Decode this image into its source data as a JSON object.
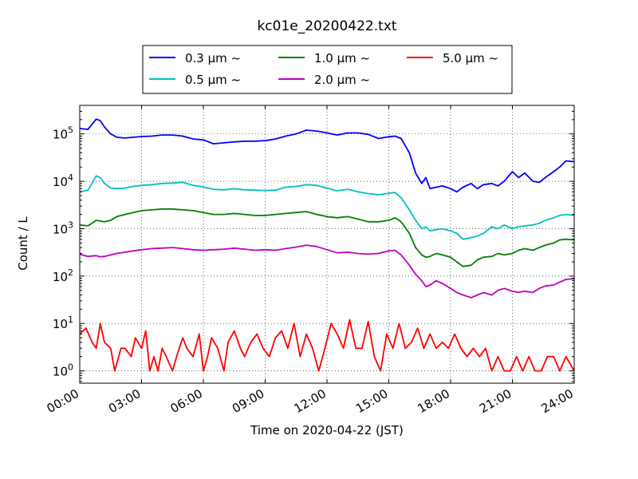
{
  "chart_data": {
    "type": "line",
    "title": "kc01e_20200422.txt",
    "xlabel": "Time on 2020-04-22 (JST)",
    "ylabel": "Count / L",
    "x_unit": "hour",
    "xlim": [
      0,
      24
    ],
    "ylim": [
      0.55,
      400000
    ],
    "yscale": "log",
    "grid": true,
    "legend_position": "top-center",
    "x_ticks": [
      {
        "value": 0,
        "label": "00:00"
      },
      {
        "value": 3,
        "label": "03:00"
      },
      {
        "value": 6,
        "label": "06:00"
      },
      {
        "value": 9,
        "label": "09:00"
      },
      {
        "value": 12,
        "label": "12:00"
      },
      {
        "value": 15,
        "label": "15:00"
      },
      {
        "value": 18,
        "label": "18:00"
      },
      {
        "value": 21,
        "label": "21:00"
      },
      {
        "value": 24,
        "label": "24:00"
      }
    ],
    "y_ticks": [
      {
        "value": 1,
        "base": "10",
        "exp": "0"
      },
      {
        "value": 10,
        "base": "10",
        "exp": "1"
      },
      {
        "value": 100,
        "base": "10",
        "exp": "2"
      },
      {
        "value": 1000,
        "base": "10",
        "exp": "3"
      },
      {
        "value": 10000,
        "base": "10",
        "exp": "4"
      },
      {
        "value": 100000,
        "base": "10",
        "exp": "5"
      }
    ],
    "series": [
      {
        "name": "0.3 μm  ~",
        "color": "#0000ff",
        "x": [
          0,
          0.4,
          0.8,
          1.0,
          1.2,
          1.5,
          1.8,
          2.2,
          2.6,
          3.0,
          3.5,
          4.0,
          4.5,
          5.0,
          5.5,
          6.0,
          6.5,
          7.0,
          7.5,
          8.0,
          8.5,
          9.0,
          9.5,
          10.0,
          10.5,
          11.0,
          11.5,
          12.0,
          12.5,
          13.0,
          13.5,
          14.0,
          14.5,
          15.0,
          15.3,
          15.6,
          16.0,
          16.3,
          16.6,
          16.8,
          17.0,
          17.3,
          17.6,
          18.0,
          18.3,
          18.6,
          19.0,
          19.3,
          19.6,
          20.0,
          20.3,
          20.6,
          21.0,
          21.3,
          21.6,
          22.0,
          22.3,
          22.6,
          23.0,
          23.3,
          23.6,
          24.0
        ],
        "y": [
          130000,
          125000,
          205000,
          190000,
          140000,
          100000,
          85000,
          82000,
          85000,
          88000,
          90000,
          95000,
          95000,
          90000,
          78000,
          75000,
          62000,
          65000,
          68000,
          70000,
          70000,
          72000,
          78000,
          90000,
          100000,
          120000,
          115000,
          105000,
          95000,
          105000,
          105000,
          98000,
          80000,
          87000,
          90000,
          80000,
          40000,
          15000,
          9000,
          12000,
          7000,
          7500,
          8000,
          7000,
          6000,
          7500,
          9000,
          7000,
          8500,
          9000,
          8000,
          10000,
          16000,
          12000,
          15000,
          10000,
          9500,
          12000,
          16000,
          20000,
          27000,
          26000
        ]
      },
      {
        "name": "0.5 μm  ~",
        "color": "#00bfbf",
        "x": [
          0,
          0.4,
          0.8,
          1.0,
          1.2,
          1.5,
          1.8,
          2.2,
          2.6,
          3.0,
          3.5,
          4.0,
          4.5,
          5.0,
          5.5,
          6.0,
          6.5,
          7.0,
          7.5,
          8.0,
          8.5,
          9.0,
          9.5,
          10.0,
          10.5,
          11.0,
          11.5,
          12.0,
          12.5,
          13.0,
          13.5,
          14.0,
          14.5,
          15.0,
          15.3,
          15.6,
          16.0,
          16.3,
          16.6,
          16.8,
          17.0,
          17.3,
          17.6,
          18.0,
          18.3,
          18.6,
          19.0,
          19.3,
          19.6,
          20.0,
          20.3,
          20.6,
          21.0,
          21.3,
          21.6,
          22.0,
          22.3,
          22.6,
          23.0,
          23.3,
          23.6,
          24.0
        ],
        "y": [
          6000,
          6500,
          13000,
          12000,
          9000,
          7200,
          7000,
          7200,
          7800,
          8200,
          8500,
          9000,
          9200,
          9500,
          8200,
          7600,
          6800,
          6600,
          7000,
          6600,
          6500,
          6400,
          6500,
          7500,
          7800,
          8500,
          8200,
          7200,
          6300,
          6800,
          6000,
          5500,
          5200,
          5600,
          5800,
          4500,
          2500,
          1500,
          1000,
          1100,
          900,
          950,
          1000,
          900,
          800,
          600,
          650,
          700,
          800,
          1100,
          1000,
          1200,
          1000,
          1100,
          1150,
          1200,
          1300,
          1500,
          1700,
          1900,
          2000,
          1900
        ]
      },
      {
        "name": "1.0 μm  ~",
        "color": "#008000",
        "x": [
          0,
          0.4,
          0.8,
          1.0,
          1.2,
          1.5,
          1.8,
          2.2,
          2.6,
          3.0,
          3.5,
          4.0,
          4.5,
          5.0,
          5.5,
          6.0,
          6.5,
          7.0,
          7.5,
          8.0,
          8.5,
          9.0,
          9.5,
          10.0,
          10.5,
          11.0,
          11.5,
          12.0,
          12.5,
          13.0,
          13.5,
          14.0,
          14.5,
          15.0,
          15.3,
          15.6,
          16.0,
          16.3,
          16.6,
          16.8,
          17.0,
          17.3,
          17.6,
          18.0,
          18.3,
          18.6,
          19.0,
          19.3,
          19.6,
          20.0,
          20.3,
          20.6,
          21.0,
          21.3,
          21.6,
          22.0,
          22.3,
          22.6,
          23.0,
          23.3,
          23.6,
          24.0
        ],
        "y": [
          1200,
          1150,
          1500,
          1450,
          1400,
          1500,
          1800,
          2000,
          2200,
          2400,
          2500,
          2600,
          2600,
          2500,
          2400,
          2200,
          2000,
          2000,
          2100,
          2000,
          1900,
          1900,
          2000,
          2100,
          2200,
          2300,
          2000,
          1800,
          1700,
          1800,
          1600,
          1400,
          1400,
          1500,
          1700,
          1400,
          800,
          400,
          280,
          250,
          260,
          300,
          280,
          250,
          200,
          160,
          170,
          220,
          250,
          260,
          300,
          280,
          300,
          350,
          380,
          350,
          400,
          450,
          500,
          580,
          600,
          580
        ]
      },
      {
        "name": "2.0 μm  ~",
        "color": "#bf00bf",
        "x": [
          0,
          0.4,
          0.8,
          1.0,
          1.2,
          1.5,
          1.8,
          2.2,
          2.6,
          3.0,
          3.5,
          4.0,
          4.5,
          5.0,
          5.5,
          6.0,
          6.5,
          7.0,
          7.5,
          8.0,
          8.5,
          9.0,
          9.5,
          10.0,
          10.5,
          11.0,
          11.5,
          12.0,
          12.5,
          13.0,
          13.5,
          14.0,
          14.5,
          15.0,
          15.3,
          15.6,
          16.0,
          16.3,
          16.6,
          16.8,
          17.0,
          17.3,
          17.6,
          18.0,
          18.3,
          18.6,
          19.0,
          19.3,
          19.6,
          20.0,
          20.3,
          20.6,
          21.0,
          21.3,
          21.6,
          22.0,
          22.3,
          22.6,
          23.0,
          23.3,
          23.6,
          24.0
        ],
        "y": [
          290,
          260,
          270,
          255,
          260,
          280,
          300,
          320,
          340,
          360,
          380,
          390,
          400,
          380,
          360,
          350,
          360,
          370,
          390,
          370,
          350,
          360,
          350,
          380,
          410,
          450,
          420,
          360,
          310,
          320,
          300,
          290,
          300,
          340,
          350,
          280,
          170,
          110,
          80,
          60,
          65,
          80,
          70,
          55,
          45,
          40,
          35,
          40,
          45,
          40,
          50,
          55,
          48,
          45,
          48,
          45,
          55,
          62,
          65,
          75,
          85,
          88
        ]
      },
      {
        "name": "5.0 μm  ~",
        "color": "#ff0000",
        "x": [
          0,
          0.3,
          0.6,
          0.8,
          1.0,
          1.2,
          1.5,
          1.7,
          2.0,
          2.2,
          2.5,
          2.7,
          3.0,
          3.2,
          3.4,
          3.6,
          3.8,
          4.0,
          4.2,
          4.5,
          4.7,
          5.0,
          5.2,
          5.5,
          5.8,
          6.0,
          6.2,
          6.4,
          6.7,
          7.0,
          7.2,
          7.5,
          7.8,
          8.0,
          8.3,
          8.6,
          8.9,
          9.2,
          9.5,
          9.8,
          10.1,
          10.4,
          10.7,
          11.0,
          11.3,
          11.6,
          11.9,
          12.2,
          12.5,
          12.8,
          13.1,
          13.4,
          13.7,
          14.0,
          14.3,
          14.6,
          14.9,
          15.2,
          15.5,
          15.8,
          16.1,
          16.4,
          16.7,
          17.0,
          17.3,
          17.6,
          17.9,
          18.2,
          18.5,
          18.8,
          19.1,
          19.4,
          19.7,
          20.0,
          20.3,
          20.6,
          20.9,
          21.2,
          21.5,
          21.8,
          22.1,
          22.4,
          22.7,
          23.0,
          23.3,
          23.6,
          24.0
        ],
        "y": [
          6,
          8,
          4,
          3,
          10,
          4,
          3,
          1,
          3,
          3,
          2,
          5,
          3,
          7,
          1,
          2,
          1,
          3,
          2,
          1,
          2,
          5,
          3,
          2,
          6,
          1,
          2,
          5,
          3,
          1,
          4,
          7,
          3,
          2,
          4,
          6,
          3,
          2,
          5,
          7,
          3,
          10,
          2,
          6,
          3,
          1,
          3,
          10,
          6,
          3,
          12,
          3,
          3,
          11,
          2,
          1,
          6,
          3,
          10,
          3,
          4,
          8,
          3,
          6,
          3,
          4,
          3,
          6,
          3,
          2,
          3,
          2,
          3,
          1,
          2,
          1,
          1,
          2,
          1,
          2,
          1,
          1,
          2,
          2,
          1,
          2,
          1
        ]
      }
    ]
  }
}
